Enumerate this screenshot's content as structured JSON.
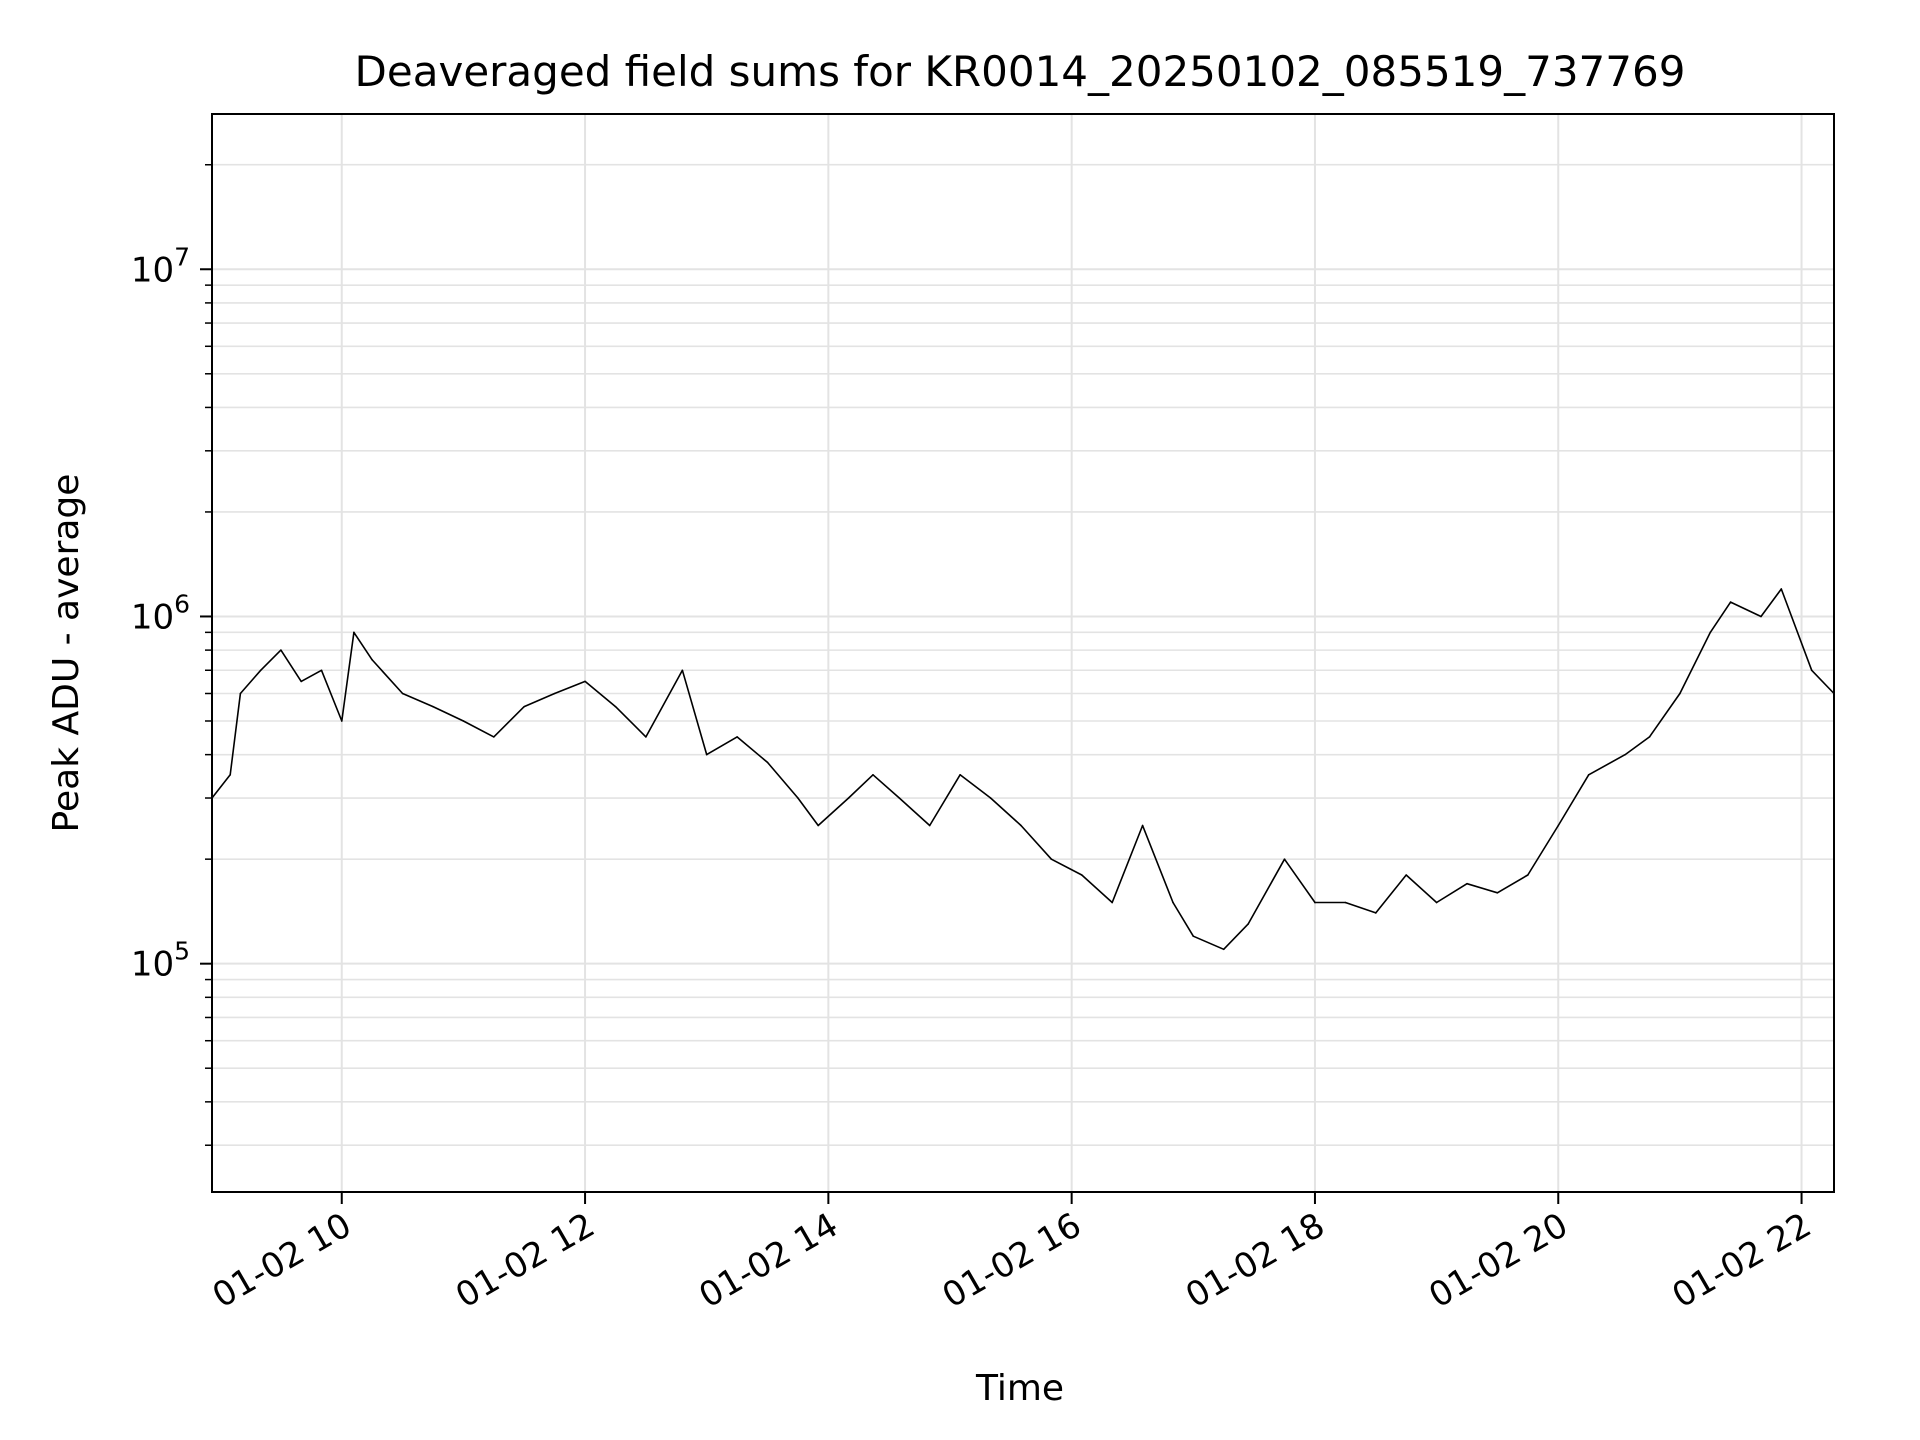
{
  "chart_data": {
    "type": "line",
    "title": "Deaveraged field sums for KR0014_20250102_085519_737769",
    "xlabel": "Time",
    "ylabel": "Peak ADU - average",
    "y_scale": "log",
    "ylim": [
      22000,
      28000000
    ],
    "xlim": [
      "2025-01-02 08:56",
      "2025-01-02 22:16"
    ],
    "grid": true,
    "line_color": "#000000",
    "grid_color": "#e3e3e3",
    "x_ticks": [
      {
        "label": "01-02 10",
        "value": "2025-01-02 10:00"
      },
      {
        "label": "01-02 12",
        "value": "2025-01-02 12:00"
      },
      {
        "label": "01-02 14",
        "value": "2025-01-02 14:00"
      },
      {
        "label": "01-02 16",
        "value": "2025-01-02 16:00"
      },
      {
        "label": "01-02 18",
        "value": "2025-01-02 18:00"
      },
      {
        "label": "01-02 20",
        "value": "2025-01-02 20:00"
      },
      {
        "label": "01-02 22",
        "value": "2025-01-02 22:00"
      }
    ],
    "y_ticks": [
      {
        "base": "10",
        "exp": "5",
        "value": 100000
      },
      {
        "base": "10",
        "exp": "6",
        "value": 1000000
      },
      {
        "base": "10",
        "exp": "7",
        "value": 10000000
      }
    ],
    "series": [
      {
        "x": [
          "2025-01-02 08:56",
          "2025-01-02 09:05",
          "2025-01-02 09:10",
          "2025-01-02 09:20",
          "2025-01-02 09:30",
          "2025-01-02 09:40",
          "2025-01-02 09:50",
          "2025-01-02 10:00",
          "2025-01-02 10:06",
          "2025-01-02 10:15",
          "2025-01-02 10:30",
          "2025-01-02 10:45",
          "2025-01-02 11:00",
          "2025-01-02 11:15",
          "2025-01-02 11:30",
          "2025-01-02 11:45",
          "2025-01-02 12:00",
          "2025-01-02 12:15",
          "2025-01-02 12:30",
          "2025-01-02 12:48",
          "2025-01-02 13:00",
          "2025-01-02 13:15",
          "2025-01-02 13:30",
          "2025-01-02 13:45",
          "2025-01-02 13:55",
          "2025-01-02 14:10",
          "2025-01-02 14:22",
          "2025-01-02 14:35",
          "2025-01-02 14:50",
          "2025-01-02 15:05",
          "2025-01-02 15:20",
          "2025-01-02 15:35",
          "2025-01-02 15:50",
          "2025-01-02 16:05",
          "2025-01-02 16:20",
          "2025-01-02 16:35",
          "2025-01-02 16:50",
          "2025-01-02 17:00",
          "2025-01-02 17:15",
          "2025-01-02 17:27",
          "2025-01-02 17:45",
          "2025-01-02 18:00",
          "2025-01-02 18:15",
          "2025-01-02 18:30",
          "2025-01-02 18:45",
          "2025-01-02 19:00",
          "2025-01-02 19:15",
          "2025-01-02 19:30",
          "2025-01-02 19:45",
          "2025-01-02 20:00",
          "2025-01-02 20:15",
          "2025-01-02 20:33",
          "2025-01-02 20:45",
          "2025-01-02 21:00",
          "2025-01-02 21:15",
          "2025-01-02 21:25",
          "2025-01-02 21:40",
          "2025-01-02 21:50",
          "2025-01-02 22:05",
          "2025-01-02 22:16"
        ],
        "y": [
          300000,
          350000,
          600000,
          700000,
          800000,
          650000,
          700000,
          500000,
          900000,
          750000,
          600000,
          550000,
          500000,
          450000,
          550000,
          600000,
          650000,
          550000,
          450000,
          700000,
          400000,
          450000,
          380000,
          300000,
          250000,
          300000,
          350000,
          300000,
          250000,
          350000,
          300000,
          250000,
          200000,
          180000,
          150000,
          250000,
          150000,
          120000,
          110000,
          130000,
          200000,
          150000,
          150000,
          140000,
          180000,
          150000,
          170000,
          160000,
          180000,
          250000,
          350000,
          400000,
          450000,
          600000,
          900000,
          1100000,
          1000000,
          1200000,
          700000,
          600000
        ]
      }
    ]
  }
}
